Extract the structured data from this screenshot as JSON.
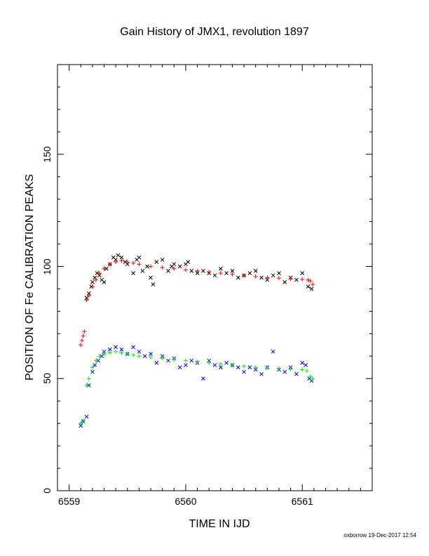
{
  "chart_data": {
    "type": "scatter",
    "title": "Gain History of JMX1, revolution 1897",
    "xlabel": "TIME IN IJD",
    "ylabel": "POSITION OF Fe CALIBRATION PEAKS",
    "xlim": [
      6558.9,
      6561.6
    ],
    "ylim": [
      0,
      190
    ],
    "x_ticks": [
      6559,
      6560,
      6561
    ],
    "x_tick_labels": [
      "6559",
      "6560",
      "6561"
    ],
    "y_ticks": [
      0,
      50,
      100,
      150
    ],
    "y_tick_labels": [
      "0",
      "50",
      "100",
      "150"
    ],
    "grid": false,
    "legend": "none",
    "series": [
      {
        "marker": "x",
        "color": "#000000",
        "x": [
          6559.15,
          6559.17,
          6559.19,
          6559.2,
          6559.22,
          6559.24,
          6559.26,
          6559.28,
          6559.3,
          6559.32,
          6559.35,
          6559.38,
          6559.4,
          6559.42,
          6559.45,
          6559.48,
          6559.5,
          6559.55,
          6559.58,
          6559.6,
          6559.63,
          6559.67,
          6559.7,
          6559.72,
          6559.75,
          6559.8,
          6559.85,
          6559.88,
          6559.9,
          6559.95,
          6560.0,
          6560.02,
          6560.05,
          6560.1,
          6560.15,
          6560.2,
          6560.25,
          6560.3,
          6560.35,
          6560.4,
          6560.45,
          6560.5,
          6560.55,
          6560.6,
          6560.65,
          6560.7,
          6560.75,
          6560.8,
          6560.85,
          6560.9,
          6560.95,
          6561.0,
          6561.05,
          6561.08
        ],
        "y": [
          86,
          88,
          91,
          93,
          95,
          97,
          96,
          94,
          93,
          99,
          101,
          104,
          103,
          105,
          104,
          102,
          101,
          97,
          103,
          104,
          98,
          100,
          95,
          92,
          102,
          103,
          98,
          100,
          101,
          100,
          101,
          102,
          98,
          97,
          98,
          97,
          96,
          99,
          97,
          98,
          95,
          96,
          97,
          98,
          95,
          94,
          96,
          97,
          93,
          95,
          94,
          97,
          91,
          90
        ]
      },
      {
        "marker": "+",
        "color": "#ff0000",
        "x": [
          6559.1,
          6559.11,
          6559.12,
          6559.13,
          6559.15,
          6559.17,
          6559.2,
          6559.23,
          6559.26,
          6559.3,
          6559.35,
          6559.4,
          6559.45,
          6559.5,
          6559.55,
          6559.6,
          6559.7,
          6559.8,
          6559.9,
          6560.0,
          6560.1,
          6560.2,
          6560.3,
          6560.4,
          6560.5,
          6560.6,
          6560.7,
          6560.8,
          6560.9,
          6561.0,
          6561.05,
          6561.07,
          6561.09
        ],
        "y": [
          65,
          67,
          69,
          71,
          85,
          87,
          91,
          94,
          97,
          99,
          101,
          102,
          102.5,
          102,
          101.5,
          101,
          100,
          99.5,
          99,
          98.5,
          98,
          97.5,
          97,
          96.5,
          96,
          95.5,
          95,
          94.8,
          94.5,
          94.2,
          94,
          93.5,
          92
        ]
      },
      {
        "marker": "x",
        "color": "#0000ff",
        "x": [
          6559.1,
          6559.12,
          6559.15,
          6559.17,
          6559.2,
          6559.22,
          6559.25,
          6559.28,
          6559.3,
          6559.35,
          6559.4,
          6559.45,
          6559.5,
          6559.55,
          6559.6,
          6559.65,
          6559.7,
          6559.75,
          6559.8,
          6559.85,
          6559.9,
          6559.95,
          6560.0,
          6560.05,
          6560.1,
          6560.15,
          6560.2,
          6560.25,
          6560.3,
          6560.35,
          6560.4,
          6560.45,
          6560.5,
          6560.55,
          6560.6,
          6560.65,
          6560.7,
          6560.75,
          6560.8,
          6560.85,
          6560.9,
          6560.95,
          6561.0,
          6561.03,
          6561.06,
          6561.08
        ],
        "y": [
          29,
          31,
          33,
          47,
          53,
          56,
          58,
          60,
          62,
          63,
          64,
          63,
          61,
          64,
          62,
          60,
          61,
          57,
          60,
          58,
          59,
          55,
          56,
          58,
          57,
          50,
          58,
          56,
          55,
          57,
          56,
          55,
          53,
          55,
          54,
          52,
          55,
          62,
          54,
          53,
          55,
          52,
          57,
          56,
          50,
          49
        ]
      },
      {
        "marker": "+",
        "color": "#00ee00",
        "x": [
          6559.1,
          6559.12,
          6559.15,
          6559.17,
          6559.2,
          6559.23,
          6559.26,
          6559.3,
          6559.35,
          6559.4,
          6559.45,
          6559.5,
          6559.55,
          6559.6,
          6559.7,
          6559.8,
          6559.9,
          6560.0,
          6560.1,
          6560.2,
          6560.3,
          6560.4,
          6560.5,
          6560.6,
          6560.7,
          6560.8,
          6560.9,
          6561.0,
          6561.04,
          6561.07,
          6561.09
        ],
        "y": [
          30,
          31,
          47,
          50,
          55,
          58,
          60,
          61,
          61.5,
          62,
          61.5,
          61,
          60.5,
          60,
          59.5,
          59,
          58.5,
          58,
          57.5,
          57,
          56.5,
          56,
          55.5,
          55,
          54.8,
          54.5,
          54.2,
          54,
          53.5,
          51,
          50
        ]
      }
    ]
  },
  "footer_text": "oxborrow 19-Dec-2017 12:54"
}
